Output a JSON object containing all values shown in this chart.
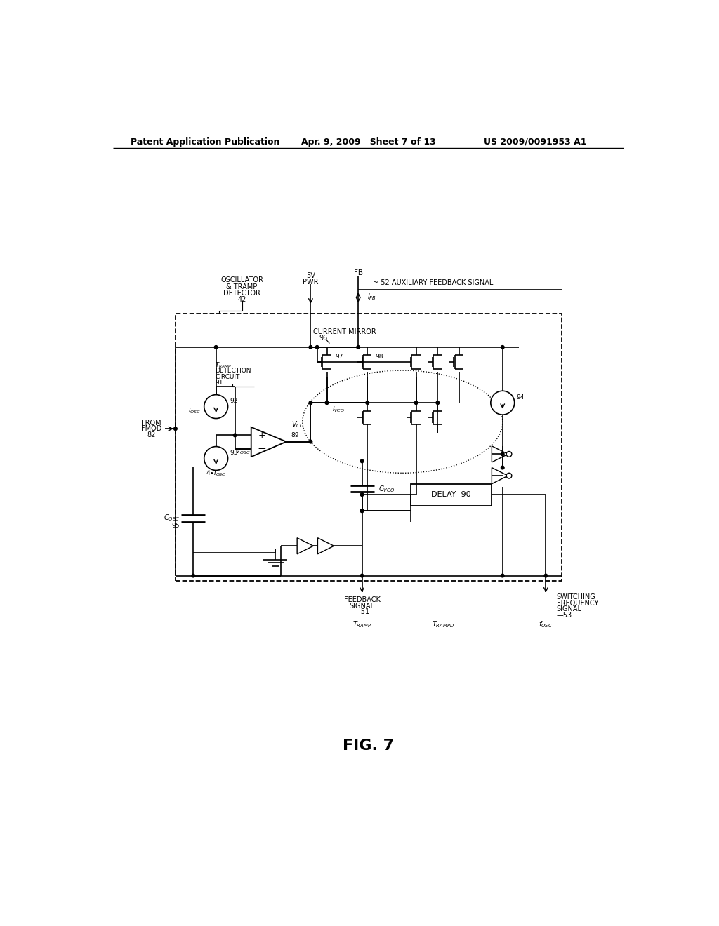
{
  "header_left": "Patent Application Publication",
  "header_center": "Apr. 9, 2009   Sheet 7 of 13",
  "header_right": "US 2009/0091953 A1",
  "fig_label": "FIG. 7",
  "bg_color": "#ffffff",
  "line_color": "#000000"
}
